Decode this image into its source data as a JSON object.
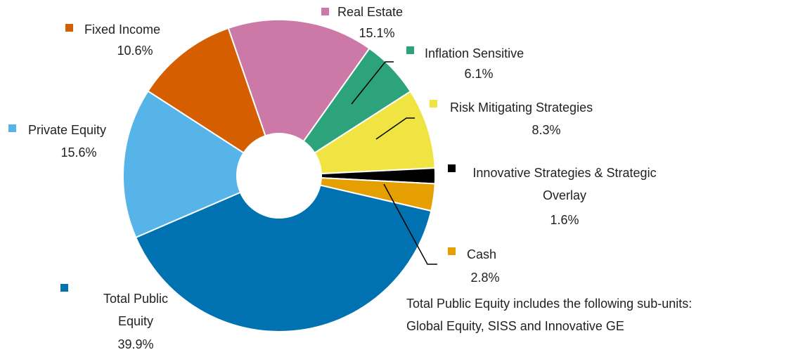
{
  "chart_data": {
    "type": "pie",
    "categories": [
      "Real Estate",
      "Inflation Sensitive",
      "Risk Mitigating Strategies",
      "Innovative Strategies & Strategic Overlay",
      "Cash",
      "Total Public Equity",
      "Private Equity",
      "Fixed Income"
    ],
    "values": [
      15.1,
      6.1,
      8.3,
      1.6,
      2.8,
      39.9,
      15.6,
      10.6
    ],
    "value_labels": [
      "15.1%",
      "6.1%",
      "8.3%",
      "1.6%",
      "2.8%",
      "39.9%",
      "15.6%",
      "10.6%"
    ],
    "colors": [
      "#cc79a7",
      "#2ca37a",
      "#f0e442",
      "#000000",
      "#e69f00",
      "#0072b2",
      "#56b4e9",
      "#d55e00"
    ],
    "annotation": [
      "Total Public Equity includes the following sub-units:",
      "Global Equity, SISS and Innovative GE"
    ]
  }
}
